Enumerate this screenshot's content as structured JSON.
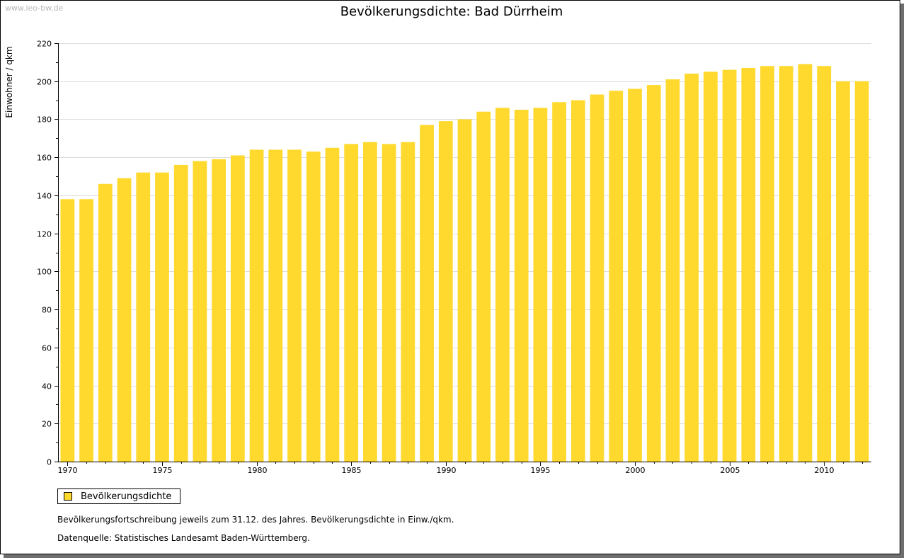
{
  "watermark": "www.leo-bw.de",
  "colors": {
    "bar": "#FFD92E",
    "grid": "#DDDDDD",
    "axis": "#000000"
  },
  "legend": {
    "label": "Bevölkerungsdichte",
    "position": "bottom-left"
  },
  "notes": [
    "Bevölkerungsfortschreibung jeweils zum 31.12. des Jahres. Bevölkerungsdichte in Einw./qkm.",
    "Datenquelle: Statistisches Landesamt Baden-Württemberg."
  ],
  "chart_data": {
    "type": "bar",
    "title": "Bevölkerungsdichte: Bad Dürrheim",
    "xlabel": "",
    "ylabel": "Einwohner / qkm",
    "ylim": [
      0,
      220
    ],
    "yticks": [
      0,
      20,
      40,
      60,
      80,
      100,
      120,
      140,
      160,
      180,
      200,
      220
    ],
    "xtick_labels": [
      1970,
      1975,
      1980,
      1985,
      1990,
      1995,
      2000,
      2005,
      2010
    ],
    "grid": true,
    "categories": [
      1970,
      1971,
      1972,
      1973,
      1974,
      1975,
      1976,
      1977,
      1978,
      1979,
      1980,
      1981,
      1982,
      1983,
      1984,
      1985,
      1986,
      1987,
      1988,
      1989,
      1990,
      1991,
      1992,
      1993,
      1994,
      1995,
      1996,
      1997,
      1998,
      1999,
      2000,
      2001,
      2002,
      2003,
      2004,
      2005,
      2006,
      2007,
      2008,
      2009,
      2010,
      2011,
      2012
    ],
    "series": [
      {
        "name": "Bevölkerungsdichte",
        "values": [
          138,
          138,
          146,
          149,
          152,
          152,
          156,
          158,
          159,
          161,
          164,
          164,
          164,
          163,
          165,
          167,
          168,
          167,
          168,
          177,
          179,
          180,
          184,
          186,
          185,
          186,
          189,
          190,
          193,
          195,
          196,
          198,
          201,
          204,
          205,
          206,
          207,
          208,
          208,
          209,
          208,
          200,
          200
        ]
      }
    ]
  }
}
